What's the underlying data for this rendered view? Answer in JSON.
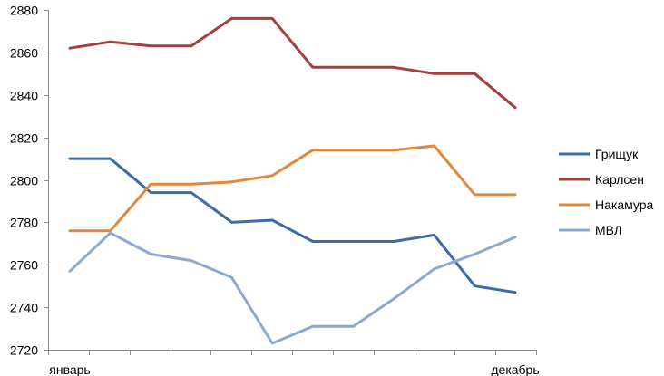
{
  "chart_data": {
    "type": "line",
    "title": "",
    "xlabel": "",
    "ylabel": "",
    "x_tick_labels": [
      "январь",
      "декабрь"
    ],
    "ylim": [
      2720,
      2880
    ],
    "y_ticks": [
      2720,
      2740,
      2760,
      2780,
      2800,
      2820,
      2840,
      2860,
      2880
    ],
    "grid": false,
    "legend": "right",
    "series": [
      {
        "name": "Грищук",
        "color": "#3e6aa7",
        "values": [
          2810,
          2810,
          2794,
          2794,
          2780,
          2781,
          2771,
          2771,
          2771,
          2774,
          2750,
          2747
        ]
      },
      {
        "name": "Карлсен",
        "color": "#a63e3c",
        "values": [
          2862,
          2865,
          2863,
          2863,
          2876,
          2876,
          2853,
          2853,
          2853,
          2850,
          2850,
          2834
        ]
      },
      {
        "name": "Накамура",
        "color": "#e0883c",
        "values": [
          2776,
          2776,
          2798,
          2798,
          2799,
          2802,
          2814,
          2814,
          2814,
          2816,
          2793,
          2793
        ]
      },
      {
        "name": "МВЛ",
        "color": "#8fa8cf",
        "values": [
          2757,
          2775,
          2765,
          2762,
          2754,
          2723,
          2731,
          2731,
          2744,
          2758,
          2765,
          2773
        ]
      }
    ]
  }
}
